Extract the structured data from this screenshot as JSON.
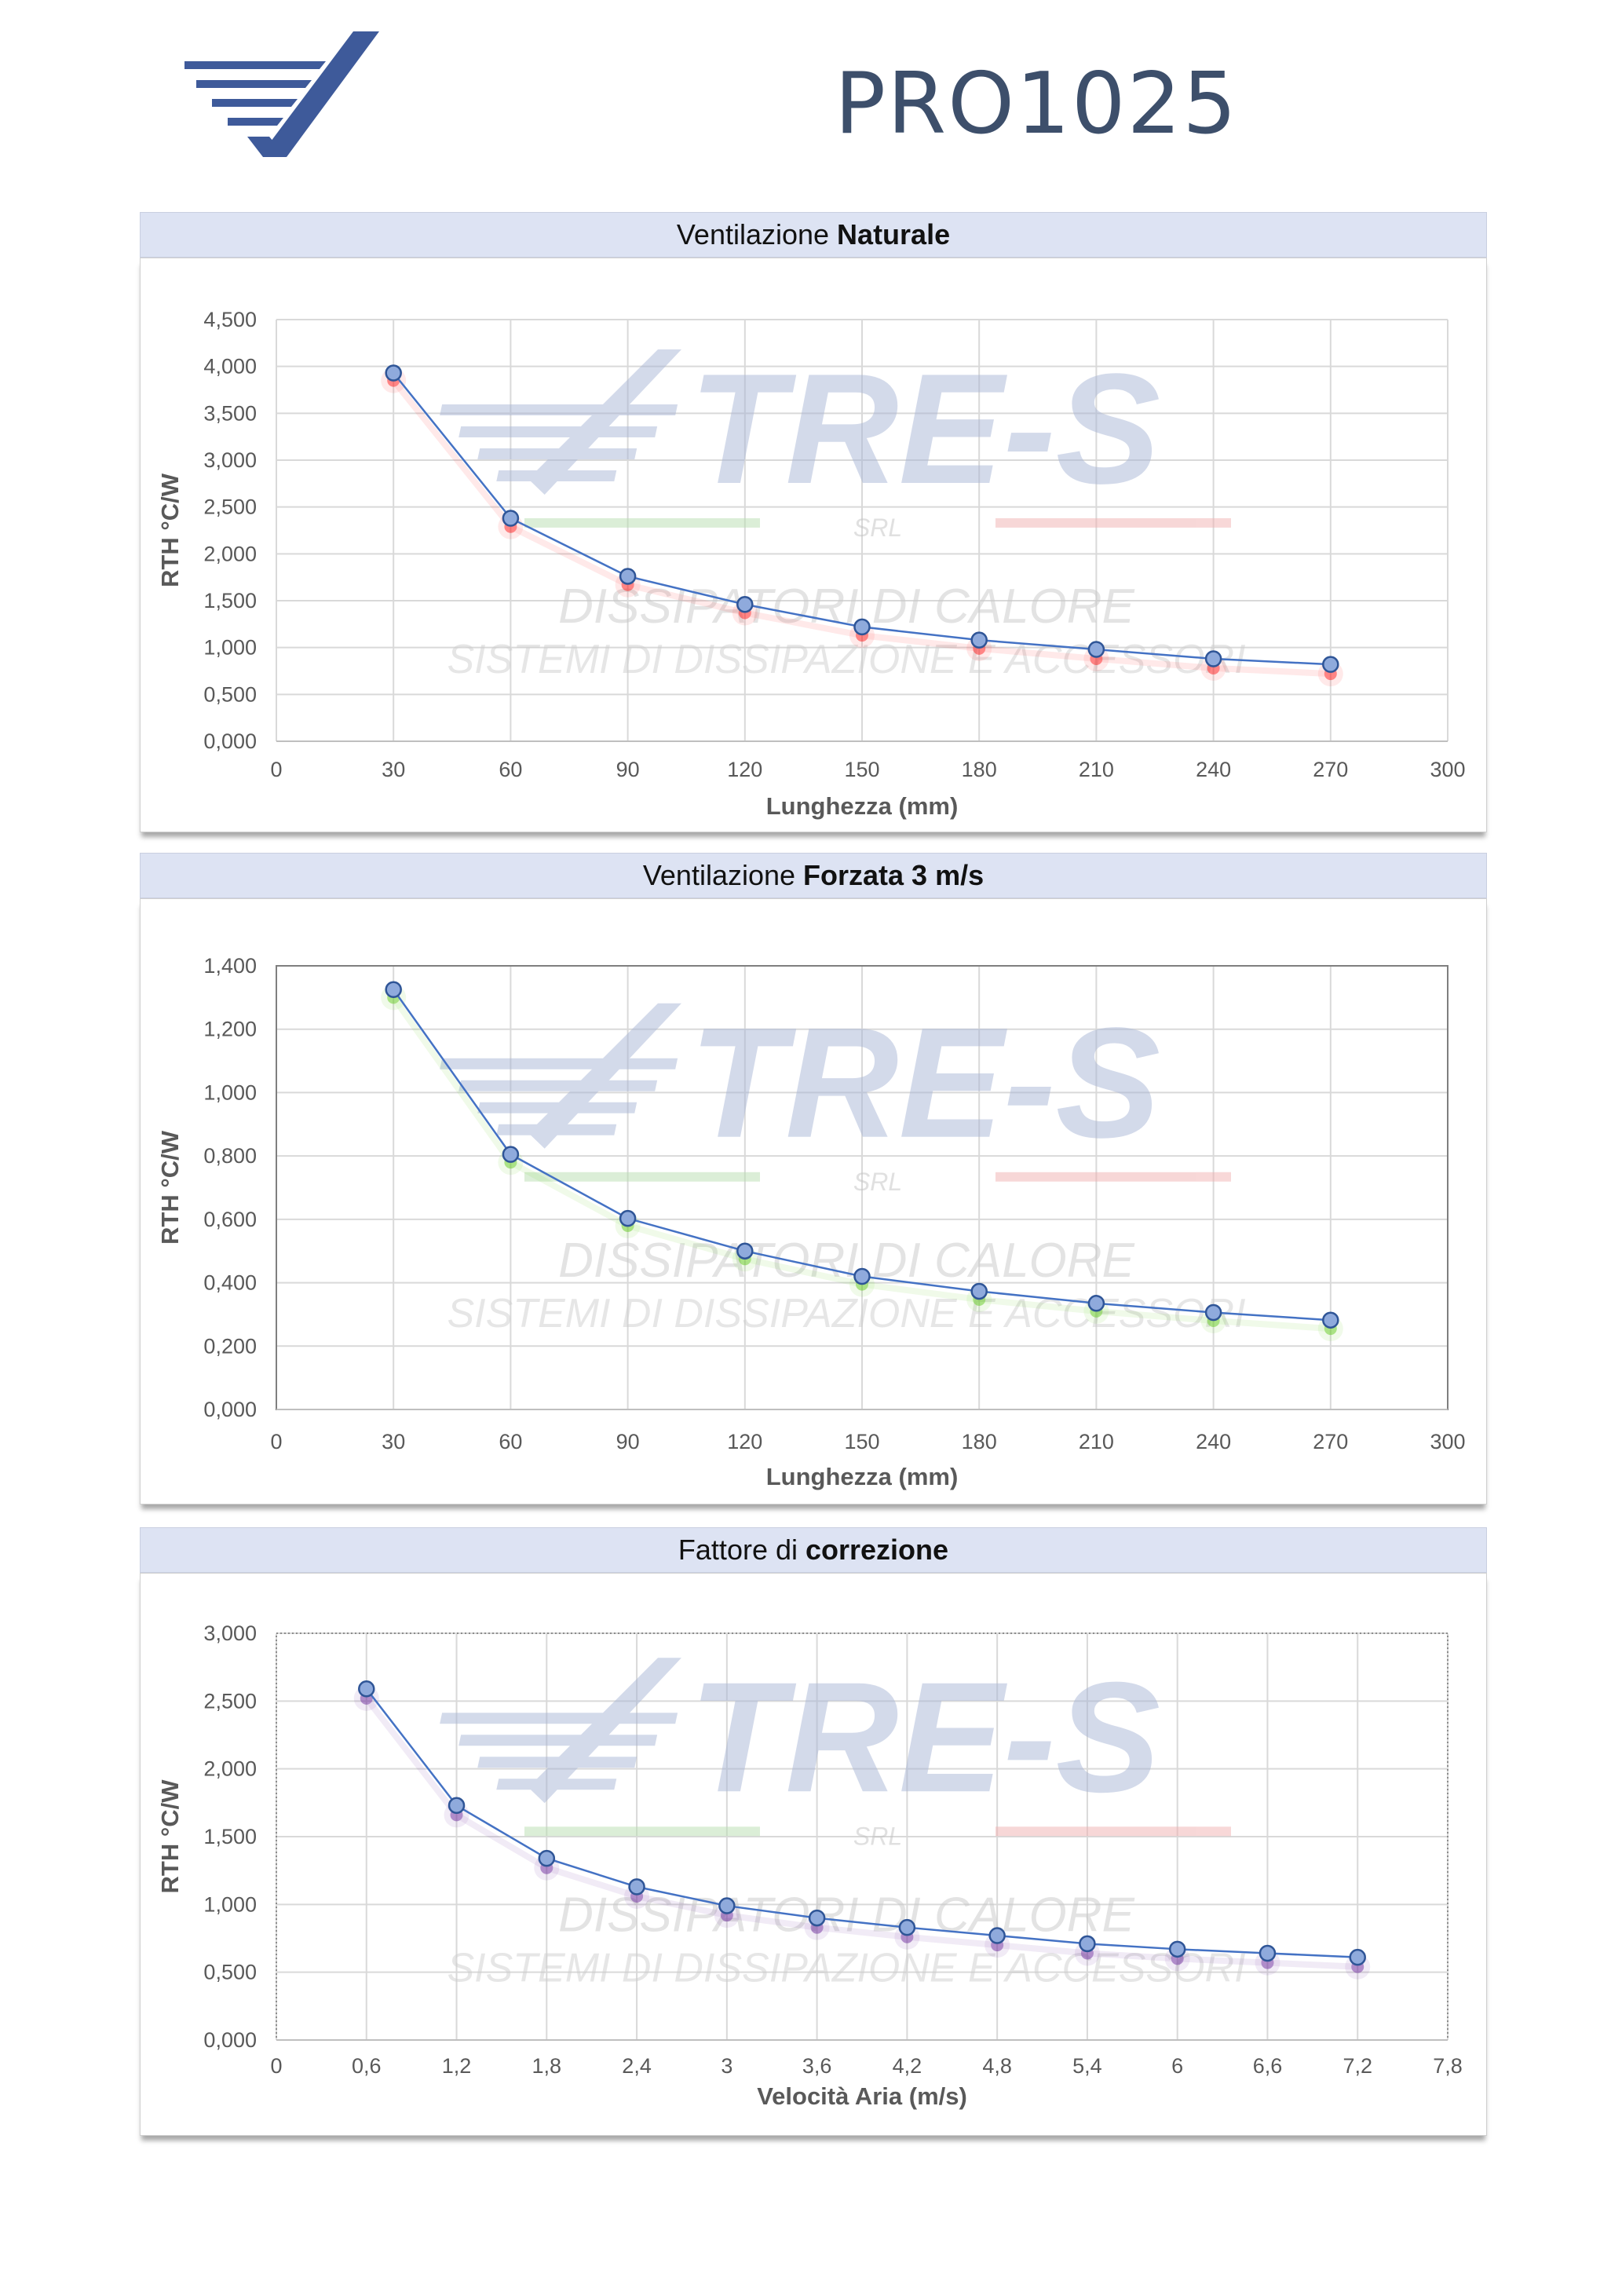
{
  "document": {
    "title": "PRO1025"
  },
  "watermark": {
    "brand": "TRE-S",
    "suffix": "SRL",
    "line1": "DISSIPATORI DI CALORE",
    "line2": "SISTEMI DI DISSIPAZIONE E ACCESSORI"
  },
  "charts": [
    {
      "header_normal": "Ventilazione ",
      "header_bold": "Naturale"
    },
    {
      "header_normal": "Ventilazione ",
      "header_bold": "Forzata 3 m/s"
    },
    {
      "header_normal": "Fattore di ",
      "header_bold": "correzione"
    }
  ],
  "chart_data": [
    {
      "type": "line",
      "xlabel": "Lunghezza (mm)",
      "ylabel": "RTH °C/W",
      "xlim": [
        0,
        300
      ],
      "ylim": [
        0,
        4.5
      ],
      "x_ticks": [
        "0",
        "30",
        "60",
        "90",
        "120",
        "150",
        "180",
        "210",
        "240",
        "270",
        "300"
      ],
      "y_ticks": [
        "0,000",
        "0,500",
        "1,000",
        "1,500",
        "2,000",
        "2,500",
        "3,000",
        "3,500",
        "4,000",
        "4,500"
      ],
      "x": [
        30,
        60,
        90,
        120,
        150,
        180,
        210,
        240,
        270
      ],
      "series": [
        {
          "values": [
            3.93,
            2.38,
            1.76,
            1.46,
            1.22,
            1.08,
            0.98,
            0.88,
            0.82
          ],
          "color": "#4472c4"
        },
        {
          "values": [
            3.85,
            2.29,
            1.67,
            1.37,
            1.13,
            0.99,
            0.88,
            0.78,
            0.72
          ],
          "color": "#ff2020"
        }
      ],
      "grid": true
    },
    {
      "type": "line",
      "xlabel": "Lunghezza (mm)",
      "ylabel": "RTH °C/W",
      "xlim": [
        0,
        300
      ],
      "ylim": [
        0,
        1.4
      ],
      "x_ticks": [
        "0",
        "30",
        "60",
        "90",
        "120",
        "150",
        "180",
        "210",
        "240",
        "270",
        "300"
      ],
      "y_ticks": [
        "0,000",
        "0,200",
        "0,400",
        "0,600",
        "0,800",
        "1,000",
        "1,200",
        "1,400"
      ],
      "x": [
        30,
        60,
        90,
        120,
        150,
        180,
        210,
        240,
        270
      ],
      "series": [
        {
          "values": [
            1.325,
            0.805,
            0.603,
            0.5,
            0.42,
            0.373,
            0.335,
            0.306,
            0.282
          ],
          "color": "#4472c4"
        },
        {
          "values": [
            1.3,
            0.78,
            0.58,
            0.475,
            0.395,
            0.347,
            0.31,
            0.28,
            0.255
          ],
          "color": "#66cc22"
        }
      ],
      "grid": true
    },
    {
      "type": "line",
      "xlabel": "Velocità Aria (m/s)",
      "ylabel": "RTH °C/W",
      "xlim": [
        0,
        7.8
      ],
      "ylim": [
        0,
        3
      ],
      "x_ticks": [
        "0",
        "0,6",
        "1,2",
        "1,8",
        "2,4",
        "3",
        "3,6",
        "4,2",
        "4,8",
        "5,4",
        "6",
        "6,6",
        "7,2",
        "7,8"
      ],
      "y_ticks": [
        "0,000",
        "0,500",
        "1,000",
        "1,500",
        "2,000",
        "2,500",
        "3,000"
      ],
      "x": [
        0.6,
        1.2,
        1.8,
        2.4,
        3.0,
        3.6,
        4.2,
        4.8,
        5.4,
        6.0,
        6.6,
        7.2
      ],
      "series": [
        {
          "values": [
            2.59,
            1.73,
            1.34,
            1.13,
            0.99,
            0.9,
            0.83,
            0.77,
            0.71,
            0.67,
            0.64,
            0.61
          ],
          "color": "#4472c4"
        },
        {
          "values": [
            2.52,
            1.66,
            1.27,
            1.06,
            0.92,
            0.83,
            0.76,
            0.7,
            0.64,
            0.6,
            0.57,
            0.54
          ],
          "color": "#7030a0"
        }
      ],
      "grid": true
    }
  ]
}
